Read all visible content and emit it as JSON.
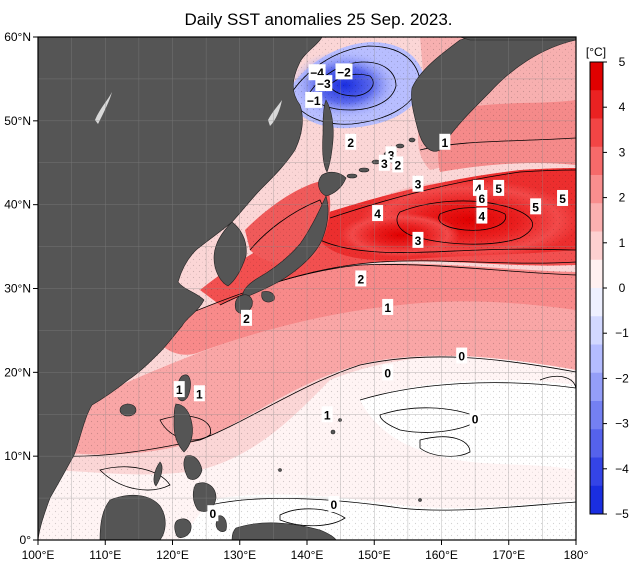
{
  "title": "Daily SST anomalies 25 Sep. 2023.",
  "longitudes": [
    "100°E",
    "110°E",
    "120°E",
    "130°E",
    "140°E",
    "150°E",
    "160°E",
    "170°E",
    "180°"
  ],
  "latitudes": [
    "60°N",
    "50°N",
    "40°N",
    "30°N",
    "20°N",
    "10°N",
    "0°"
  ],
  "colorbar": {
    "unit": "[°C]",
    "ticks": [
      "5",
      "4",
      "3",
      "2",
      "1",
      "0",
      "−1",
      "−2",
      "−3",
      "−4",
      "−5"
    ],
    "colors": [
      "#e00000",
      "#ea2222",
      "#f24545",
      "#f66a6a",
      "#f98e8e",
      "#fbb0b0",
      "#fdd0d0",
      "#fff0f0",
      "#eef0ff",
      "#d2d8ff",
      "#b4bcff",
      "#949ef8",
      "#7480f2",
      "#5562ec",
      "#3444e6",
      "#1a2ee0"
    ]
  },
  "contour_labels": [
    {
      "text": "−4",
      "lon": 141.5,
      "lat": 55.8
    },
    {
      "text": "−2",
      "lon": 145.5,
      "lat": 55.9
    },
    {
      "text": "−3",
      "lon": 142.5,
      "lat": 54.5
    },
    {
      "text": "−1",
      "lon": 141.0,
      "lat": 52.5
    },
    {
      "text": "2",
      "lon": 146.5,
      "lat": 47.5
    },
    {
      "text": "1",
      "lon": 160.5,
      "lat": 47.5
    },
    {
      "text": "3",
      "lon": 152.5,
      "lat": 46.0
    },
    {
      "text": "3",
      "lon": 151.5,
      "lat": 45.0
    },
    {
      "text": "2",
      "lon": 153.5,
      "lat": 44.8
    },
    {
      "text": "3",
      "lon": 156.5,
      "lat": 42.5
    },
    {
      "text": "4",
      "lon": 165.5,
      "lat": 42.0
    },
    {
      "text": "5",
      "lon": 168.5,
      "lat": 42.0
    },
    {
      "text": "6",
      "lon": 166.0,
      "lat": 40.8
    },
    {
      "text": "5",
      "lon": 178.0,
      "lat": 40.8
    },
    {
      "text": "5",
      "lon": 174.0,
      "lat": 39.8
    },
    {
      "text": "4",
      "lon": 150.5,
      "lat": 39.0
    },
    {
      "text": "4",
      "lon": 166.0,
      "lat": 38.7
    },
    {
      "text": "3",
      "lon": 156.5,
      "lat": 35.8
    },
    {
      "text": "2",
      "lon": 148.0,
      "lat": 31.2
    },
    {
      "text": "1",
      "lon": 152.0,
      "lat": 27.8
    },
    {
      "text": "2",
      "lon": 131.0,
      "lat": 26.5
    },
    {
      "text": "0",
      "lon": 163.0,
      "lat": 22.0
    },
    {
      "text": "0",
      "lon": 152.0,
      "lat": 20.0
    },
    {
      "text": "1",
      "lon": 121.0,
      "lat": 18.0
    },
    {
      "text": "1",
      "lon": 124.0,
      "lat": 17.5
    },
    {
      "text": "1",
      "lon": 143.0,
      "lat": 15.0
    },
    {
      "text": "0",
      "lon": 165.0,
      "lat": 14.5
    },
    {
      "text": "0",
      "lon": 144.0,
      "lat": 4.3
    },
    {
      "text": "0",
      "lon": 126.0,
      "lat": 3.2
    }
  ]
}
